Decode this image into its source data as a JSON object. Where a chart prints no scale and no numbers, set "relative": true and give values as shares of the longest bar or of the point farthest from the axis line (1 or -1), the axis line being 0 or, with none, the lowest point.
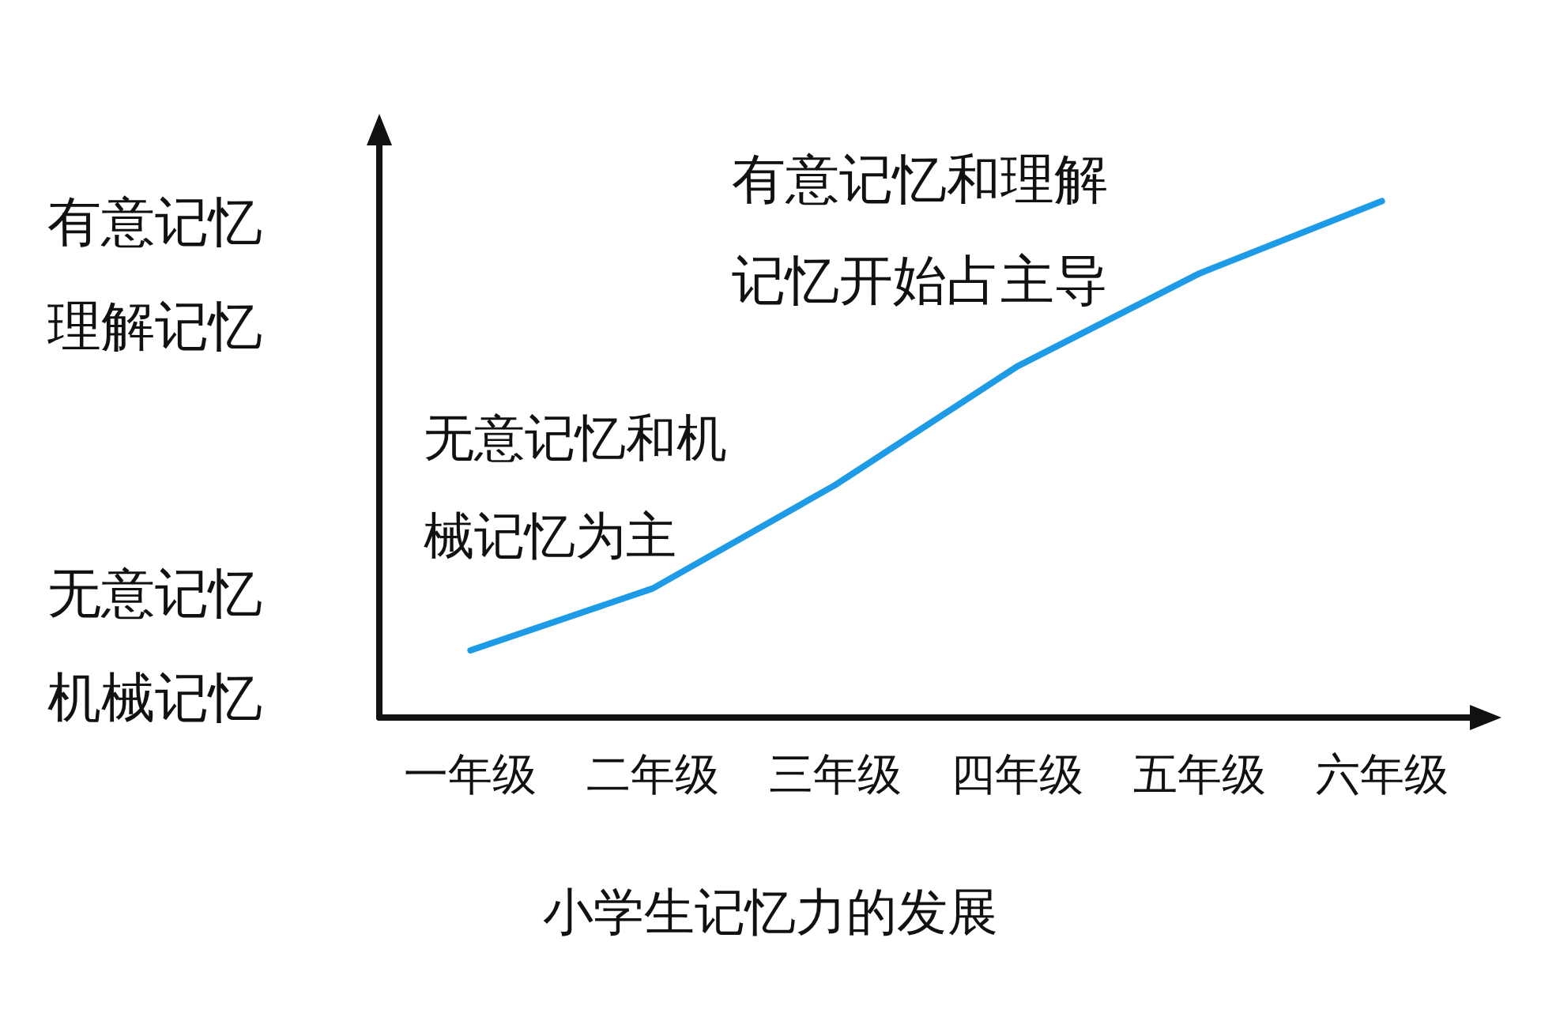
{
  "chart_data": {
    "type": "line",
    "title": "小学生记忆力的发展",
    "categories": [
      "一年级",
      "二年级",
      "三年级",
      "四年级",
      "五年级",
      "六年级"
    ],
    "series": [
      {
        "color": "#1e9be6",
        "values": [
          0.13,
          0.25,
          0.45,
          0.68,
          0.86,
          1
        ]
      }
    ],
    "relative": true,
    "tick_labels": "x",
    "grid": false,
    "marker": "none",
    "annotations": [
      "有意记忆理解记忆",
      "无意记忆机械记忆",
      "无意记忆和机械记忆为主",
      "有意记忆和理解记忆开始占主导"
    ]
  }
}
